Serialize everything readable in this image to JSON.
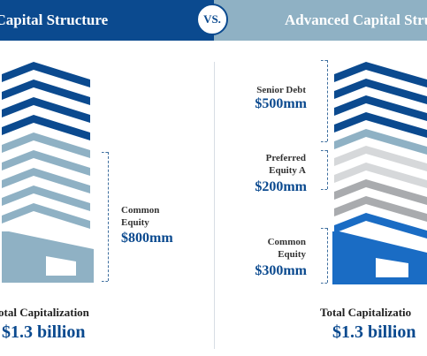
{
  "header": {
    "left_title": "ic Capital Structure",
    "vs_label": "VS.",
    "right_title": "Advanced Capital Stru"
  },
  "colors": {
    "navy": "#0b4a8f",
    "steel": "#8fb1c4",
    "bright_blue": "#1a6cc4",
    "light_gray": "#d6d8da",
    "mid_gray": "#a9abae"
  },
  "left": {
    "tranches": [
      {
        "label_line1": "Common",
        "label_line2": "Equity",
        "amount": "$800mm"
      }
    ],
    "total_label": "otal Capitalization",
    "total_value": "$1.3 billion"
  },
  "right": {
    "tranches": [
      {
        "label_line1": "Senior Debt",
        "label_line2": "",
        "amount": "$500mm"
      },
      {
        "label_line1": "Preferred",
        "label_line2": "Equity A",
        "amount": "$200mm"
      },
      {
        "label_line1": "Common",
        "label_line2": "Equity",
        "amount": "$300mm"
      }
    ],
    "total_label": "Total Capitalizatio",
    "total_value": "$1.3 billion"
  }
}
